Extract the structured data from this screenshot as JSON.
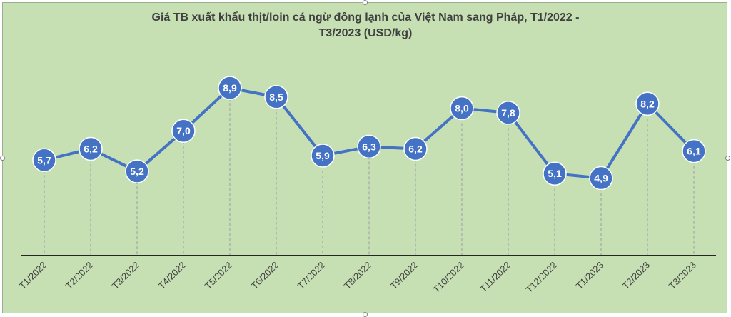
{
  "chart_data": {
    "type": "line",
    "title_line1": "Giá TB xuất khẩu thịt/loin cá ngừ đông lạnh của Việt Nam sang Pháp, T1/2022 -",
    "title_line2": "T3/2023 (USD/kg)",
    "categories": [
      "T1/2022",
      "T2/2022",
      "T3/2022",
      "T4/2022",
      "T5/2022",
      "T6/2022",
      "T7/2022",
      "T8/2022",
      "T9/2022",
      "T10/2022",
      "T11/2022",
      "T12/2022",
      "T1/2023",
      "T2/2023",
      "T3/2023"
    ],
    "series": [
      {
        "values": [
          5.7,
          6.2,
          5.2,
          7.0,
          8.9,
          8.5,
          5.9,
          6.3,
          6.2,
          8.0,
          7.8,
          5.1,
          4.9,
          8.2,
          6.1
        ],
        "labels": [
          "5,7",
          "6,2",
          "5,2",
          "7,0",
          "8,9",
          "8,5",
          "5,9",
          "6,3",
          "6,2",
          "8,0",
          "7,8",
          "5,1",
          "4,9",
          "8,2",
          "6,1"
        ]
      }
    ],
    "line_color": "#4472c4",
    "background_color": "#c6e0b4",
    "drop_line_color": "#a6a6a6",
    "grid": false,
    "legend": "none"
  }
}
